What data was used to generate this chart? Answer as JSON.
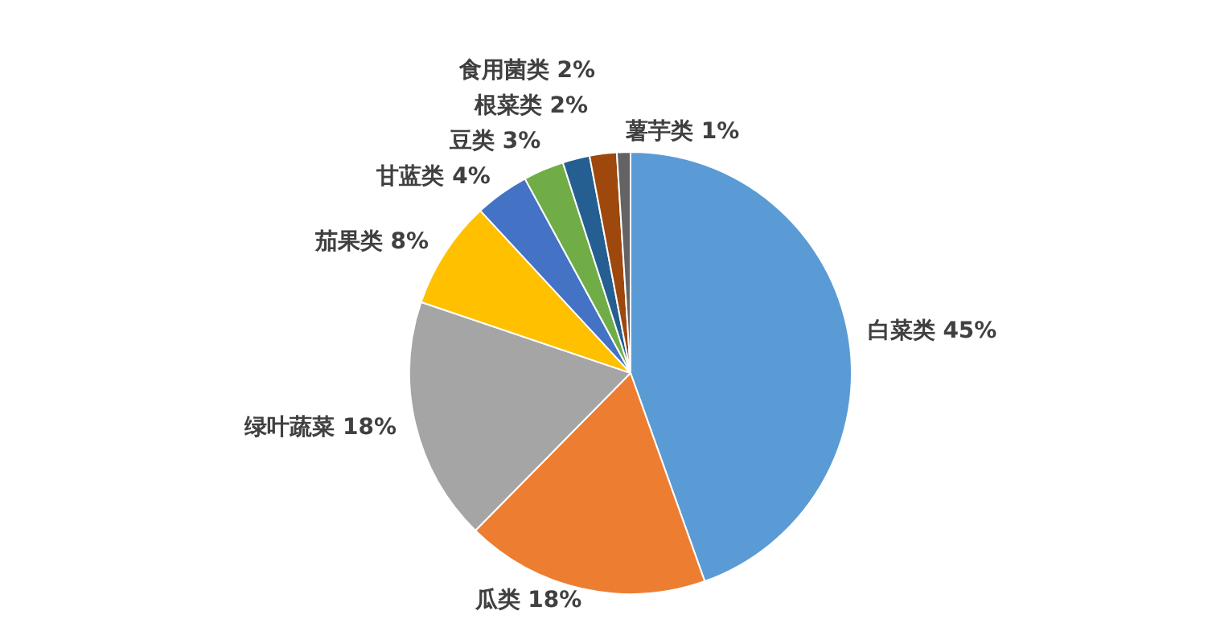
{
  "chart_data": {
    "type": "pie",
    "categories": [
      "白菜类",
      "瓜类",
      "绿叶蔬菜",
      "茄果类",
      "甘蓝类",
      "豆类",
      "根菜类",
      "食用菌类",
      "薯芋类"
    ],
    "values": [
      45,
      18,
      18,
      8,
      4,
      3,
      2,
      2,
      1
    ],
    "value_labels": [
      "45%",
      "18%",
      "18%",
      "8%",
      "4%",
      "3%",
      "2%",
      "2%",
      "1%"
    ],
    "colors": [
      "#5b9bd5",
      "#ed7d31",
      "#a5a5a5",
      "#ffc000",
      "#4472c4",
      "#70ad47",
      "#255e91",
      "#9e480e",
      "#636363"
    ],
    "legend": false
  }
}
